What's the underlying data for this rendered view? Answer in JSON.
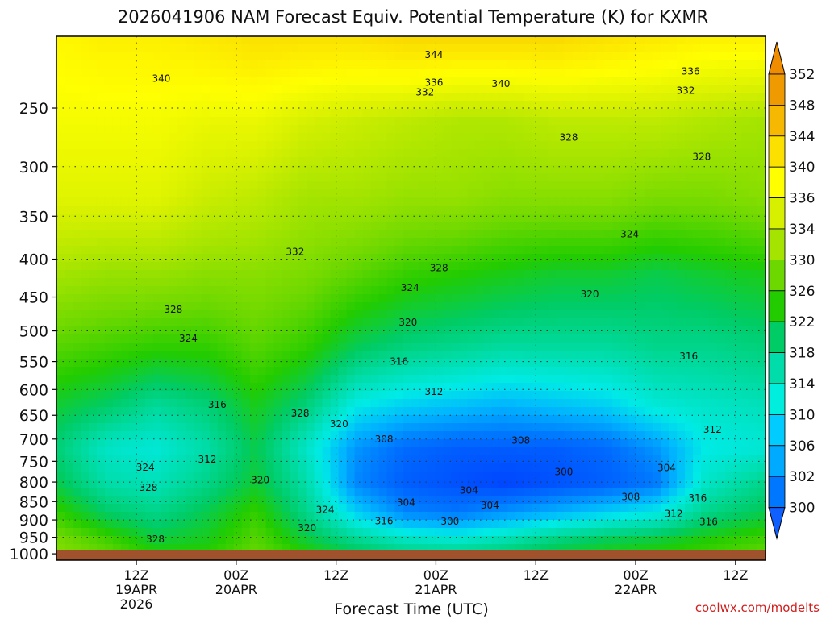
{
  "chart_data": {
    "type": "heatmap",
    "title": "2026041906 NAM Forecast Equiv. Potential Temperature (K) for KXMR",
    "xlabel": "Forecast Time (UTC)",
    "ylabel": "",
    "credit": "coolwx.com/modelts",
    "x_range_hours": [
      -2,
      69
    ],
    "y_range_hpa": [
      200,
      1020
    ],
    "y_scale": "log-pressure",
    "grid": true,
    "x_ticks": [
      {
        "hour": 6,
        "l1": "12Z",
        "l2": "19APR",
        "l3": "2026"
      },
      {
        "hour": 16,
        "l1": "00Z",
        "l2": "20APR",
        "l3": ""
      },
      {
        "hour": 26,
        "l1": "12Z",
        "l2": "",
        "l3": ""
      },
      {
        "hour": 36,
        "l1": "00Z",
        "l2": "21APR",
        "l3": ""
      },
      {
        "hour": 46,
        "l1": "12Z",
        "l2": "",
        "l3": ""
      },
      {
        "hour": 56,
        "l1": "00Z",
        "l2": "22APR",
        "l3": ""
      },
      {
        "hour": 66,
        "l1": "12Z",
        "l2": "",
        "l3": ""
      }
    ],
    "y_ticks": [
      "250",
      "300",
      "350",
      "400",
      "450",
      "500",
      "550",
      "600",
      "650",
      "700",
      "750",
      "800",
      "850",
      "900",
      "950",
      "1000"
    ],
    "y_tick_values": [
      250,
      300,
      350,
      400,
      450,
      500,
      550,
      600,
      650,
      700,
      750,
      800,
      850,
      900,
      950,
      1000
    ],
    "colorbar": {
      "labels": [
        "352",
        "348",
        "344",
        "340",
        "336",
        "334",
        "330",
        "326",
        "322",
        "318",
        "314",
        "310",
        "306",
        "302",
        "300"
      ],
      "colors": [
        "#ee9a00",
        "#f6b800",
        "#fbe000",
        "#ffff00",
        "#d6f000",
        "#a4e400",
        "#6cd800",
        "#22cc00",
        "#00cc66",
        "#00ddaa",
        "#00eedd",
        "#00ccff",
        "#00aaff",
        "#0077ff",
        "#0044ff"
      ],
      "arrow_top_color": "#f08c00",
      "arrow_bottom_color": "#1060ff"
    },
    "contour_labels": [
      {
        "text": "344",
        "hour": 35.8,
        "p": 212
      },
      {
        "text": "340",
        "hour": 8.5,
        "p": 228
      },
      {
        "text": "340",
        "hour": 42.5,
        "p": 232
      },
      {
        "text": "336",
        "hour": 35.8,
        "p": 231
      },
      {
        "text": "336",
        "hour": 61.5,
        "p": 223
      },
      {
        "text": "332",
        "hour": 34.9,
        "p": 238
      },
      {
        "text": "332",
        "hour": 61,
        "p": 237
      },
      {
        "text": "328",
        "hour": 49.3,
        "p": 274
      },
      {
        "text": "328",
        "hour": 62.6,
        "p": 291
      },
      {
        "text": "324",
        "hour": 55.4,
        "p": 370
      },
      {
        "text": "332",
        "hour": 21.9,
        "p": 391
      },
      {
        "text": "328",
        "hour": 36.3,
        "p": 411
      },
      {
        "text": "324",
        "hour": 33.4,
        "p": 437
      },
      {
        "text": "320",
        "hour": 51.4,
        "p": 446
      },
      {
        "text": "328",
        "hour": 9.7,
        "p": 468
      },
      {
        "text": "320",
        "hour": 33.2,
        "p": 487
      },
      {
        "text": "324",
        "hour": 11.2,
        "p": 512
      },
      {
        "text": "316",
        "hour": 61.3,
        "p": 541
      },
      {
        "text": "316",
        "hour": 32.3,
        "p": 550
      },
      {
        "text": "312",
        "hour": 35.8,
        "p": 604
      },
      {
        "text": "316",
        "hour": 14.1,
        "p": 629
      },
      {
        "text": "328",
        "hour": 22.4,
        "p": 646
      },
      {
        "text": "320",
        "hour": 26.3,
        "p": 668
      },
      {
        "text": "312",
        "hour": 63.7,
        "p": 680
      },
      {
        "text": "308",
        "hour": 30.8,
        "p": 700
      },
      {
        "text": "308",
        "hour": 44.5,
        "p": 703
      },
      {
        "text": "312",
        "hour": 13.1,
        "p": 746
      },
      {
        "text": "324",
        "hour": 6.9,
        "p": 765
      },
      {
        "text": "300",
        "hour": 48.8,
        "p": 775
      },
      {
        "text": "304",
        "hour": 59.1,
        "p": 766
      },
      {
        "text": "320",
        "hour": 18.4,
        "p": 795
      },
      {
        "text": "328",
        "hour": 7.2,
        "p": 814
      },
      {
        "text": "304",
        "hour": 39.3,
        "p": 821
      },
      {
        "text": "308",
        "hour": 55.5,
        "p": 838
      },
      {
        "text": "316",
        "hour": 62.2,
        "p": 841
      },
      {
        "text": "304",
        "hour": 33,
        "p": 853
      },
      {
        "text": "304",
        "hour": 41.4,
        "p": 860
      },
      {
        "text": "324",
        "hour": 24.9,
        "p": 872
      },
      {
        "text": "312",
        "hour": 59.8,
        "p": 883
      },
      {
        "text": "316",
        "hour": 30.8,
        "p": 903
      },
      {
        "text": "300",
        "hour": 37.4,
        "p": 904
      },
      {
        "text": "316",
        "hour": 63.3,
        "p": 905
      },
      {
        "text": "320",
        "hour": 23.1,
        "p": 923
      },
      {
        "text": "328",
        "hour": 7.9,
        "p": 956
      }
    ],
    "theta_e_field_rows": [
      {
        "p": 200,
        "v": [
          341,
          342,
          342,
          343,
          344,
          344,
          344,
          345,
          345,
          345,
          345,
          344,
          343,
          342,
          342
        ]
      },
      {
        "p": 260,
        "v": [
          339,
          339,
          339,
          338,
          338,
          336,
          335,
          334,
          333,
          333,
          334,
          334,
          334,
          333,
          332
        ]
      },
      {
        "p": 330,
        "v": [
          337,
          337,
          337,
          335,
          334,
          332,
          332,
          331,
          331,
          330,
          330,
          330,
          329,
          329,
          330
        ]
      },
      {
        "p": 420,
        "v": [
          332,
          331,
          331,
          330,
          330,
          329,
          327,
          325,
          324,
          323,
          322,
          322,
          321,
          322,
          323
        ]
      },
      {
        "p": 520,
        "v": [
          327,
          326,
          325,
          325,
          327,
          325,
          321,
          319,
          318,
          317,
          317,
          317,
          318,
          318,
          319
        ]
      },
      {
        "p": 630,
        "v": [
          322,
          320,
          317,
          319,
          323,
          319,
          312,
          310,
          309,
          308,
          309,
          310,
          313,
          314,
          315
        ]
      },
      {
        "p": 720,
        "v": [
          319,
          314,
          313,
          316,
          321,
          314,
          306,
          303,
          302,
          302,
          302,
          303,
          306,
          312,
          313
        ]
      },
      {
        "p": 800,
        "v": [
          321,
          316,
          315,
          318,
          322,
          316,
          305,
          302,
          301,
          300,
          301,
          302,
          304,
          314,
          318
        ]
      },
      {
        "p": 880,
        "v": [
          325,
          320,
          318,
          321,
          325,
          318,
          310,
          305,
          304,
          306,
          308,
          310,
          312,
          318,
          321
        ]
      },
      {
        "p": 960,
        "v": [
          329,
          326,
          322,
          323,
          327,
          322,
          318,
          315,
          314,
          316,
          319,
          321,
          322,
          324,
          326
        ]
      },
      {
        "p": 1020,
        "v": [
          330,
          328,
          325,
          325,
          328,
          325,
          322,
          320,
          320,
          321,
          323,
          324,
          325,
          326,
          328
        ]
      }
    ],
    "theta_e_field_hours": [
      -2,
      3,
      8,
      13,
      18,
      23,
      28,
      33,
      38,
      43,
      48,
      53,
      58,
      63,
      69
    ],
    "ground_color": "#a0522d"
  }
}
